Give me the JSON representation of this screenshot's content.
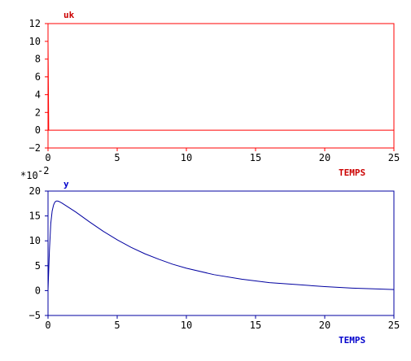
{
  "chart_data": [
    {
      "type": "line",
      "series_label": "uk",
      "xlabel": "TEMPS",
      "xlim": [
        0,
        25
      ],
      "ylim": [
        -2,
        12
      ],
      "xticks": [
        0,
        5,
        10,
        15,
        20,
        25
      ],
      "yticks": [
        -2,
        0,
        2,
        4,
        6,
        8,
        10,
        12
      ],
      "color": "#ff0000",
      "series": [
        {
          "x": [
            0,
            0,
            0.05,
            25
          ],
          "y": [
            0,
            10,
            0,
            0
          ]
        }
      ]
    },
    {
      "type": "line",
      "series_label": "y",
      "xlabel": "TEMPS",
      "scale_note": "*10",
      "scale_exp": "-2",
      "xlim": [
        0,
        25
      ],
      "ylim": [
        -5,
        20
      ],
      "xticks": [
        0,
        5,
        10,
        15,
        20,
        25
      ],
      "yticks": [
        -5,
        0,
        5,
        10,
        15,
        20
      ],
      "color": "#0000a0",
      "series": [
        {
          "x": [
            0,
            0.1,
            0.2,
            0.3,
            0.4,
            0.5,
            0.6,
            0.7,
            0.8,
            1.0,
            1.5,
            2,
            3,
            4,
            5,
            6,
            7,
            8,
            9,
            10,
            12,
            14,
            16,
            18,
            20,
            22,
            24,
            25
          ],
          "y": [
            0,
            8,
            13.5,
            16,
            17.2,
            17.8,
            18.0,
            18.0,
            17.9,
            17.6,
            16.7,
            15.8,
            13.8,
            11.9,
            10.2,
            8.7,
            7.4,
            6.3,
            5.3,
            4.5,
            3.2,
            2.3,
            1.6,
            1.2,
            0.8,
            0.5,
            0.3,
            0.2
          ]
        }
      ]
    }
  ]
}
